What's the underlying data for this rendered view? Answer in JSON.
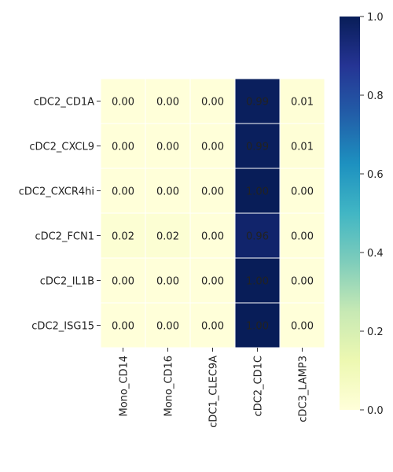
{
  "chart_data": {
    "type": "heatmap",
    "rows": [
      "cDC2_CD1A",
      "cDC2_CXCL9",
      "cDC2_CXCR4hi",
      "cDC2_FCN1",
      "cDC2_IL1B",
      "cDC2_ISG15"
    ],
    "columns": [
      "Mono_CD14",
      "Mono_CD16",
      "cDC1_CLEC9A",
      "cDC2_CD1C",
      "cDC3_LAMP3"
    ],
    "values": [
      [
        0.0,
        0.0,
        0.0,
        0.99,
        0.01
      ],
      [
        0.0,
        0.0,
        0.0,
        0.99,
        0.01
      ],
      [
        0.0,
        0.0,
        0.0,
        1.0,
        0.0
      ],
      [
        0.02,
        0.02,
        0.0,
        0.96,
        0.0
      ],
      [
        0.0,
        0.0,
        0.0,
        1.0,
        0.0
      ],
      [
        0.0,
        0.0,
        0.0,
        1.0,
        0.0
      ]
    ],
    "colorscale": "YlGnBu",
    "vmin": 0.0,
    "vmax": 1.0,
    "colorbar_ticks": [
      "0.0",
      "0.2",
      "0.4",
      "0.6",
      "0.8",
      "1.0"
    ],
    "annotation_format": "0.00",
    "title": "",
    "xlabel": "",
    "ylabel": ""
  }
}
